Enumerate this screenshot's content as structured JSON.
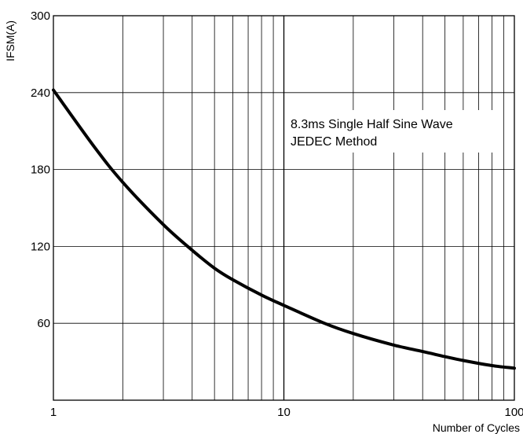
{
  "chart_data": {
    "type": "line",
    "xlabel": "Number of Cycles",
    "ylabel": "IFSM(A)",
    "xscale": "log",
    "xlim": [
      1,
      100
    ],
    "ylim": [
      0,
      300
    ],
    "x_ticks": [
      1,
      10,
      100
    ],
    "x_tick_labels": [
      "1",
      "10",
      "100"
    ],
    "y_ticks": [
      60,
      120,
      180,
      240,
      300
    ],
    "y_tick_labels": [
      "60",
      "120",
      "180",
      "240",
      "300"
    ],
    "grid": true,
    "annotation": [
      "8.3ms Single Half Sine Wave",
      "JEDEC Method"
    ],
    "series": [
      {
        "x": [
          1,
          1.5,
          2,
          3,
          4,
          5,
          6,
          8,
          10,
          15,
          20,
          30,
          40,
          50,
          60,
          80,
          100
        ],
        "y": [
          242,
          198,
          170,
          137,
          117,
          103,
          94,
          82,
          74,
          60,
          52,
          43,
          38,
          34,
          31,
          27,
          25
        ]
      }
    ]
  }
}
